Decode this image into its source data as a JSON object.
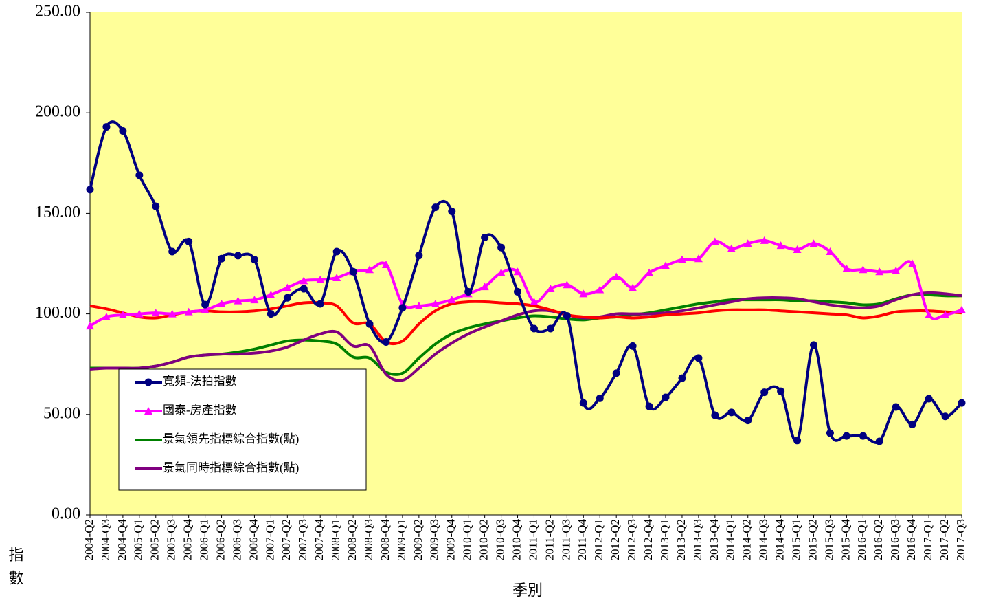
{
  "chart_data": {
    "type": "line",
    "x_label": "季別",
    "y_label": "指數",
    "categories": [
      "2004-Q2",
      "2004-Q3",
      "2004-Q4",
      "2005-Q1",
      "2005-Q2",
      "2005-Q3",
      "2005-Q4",
      "2006-Q1",
      "2006-Q2",
      "2006-Q3",
      "2006-Q4",
      "2007-Q1",
      "2007-Q2",
      "2007-Q3",
      "2007-Q4",
      "2008-Q1",
      "2008-Q2",
      "2008-Q3",
      "2008-Q4",
      "2009-Q1",
      "2009-Q2",
      "2009-Q3",
      "2009-Q4",
      "2010-Q1",
      "2010-Q2",
      "2010-Q3",
      "2010-Q4",
      "2011-Q1",
      "2011-Q2",
      "2011-Q3",
      "2011-Q4",
      "2012-Q1",
      "2012-Q2",
      "2012-Q3",
      "2012-Q4",
      "2013-Q1",
      "2013-Q2",
      "2013-Q3",
      "2013-Q4",
      "2014-Q1",
      "2014-Q2",
      "2014-Q3",
      "2014-Q4",
      "2015-Q1",
      "2015-Q2",
      "2015-Q3",
      "2015-Q4",
      "2016-Q1",
      "2016-Q2",
      "2016-Q3",
      "2016-Q4",
      "2017-Q1",
      "2017-Q2",
      "2017-Q3"
    ],
    "series": [
      {
        "name": "寬頻-法拍指數",
        "color": "#000080",
        "marker": "circle",
        "values": [
          161.8,
          193,
          191,
          169,
          153.5,
          131,
          136,
          104.6,
          127.5,
          129,
          127,
          100,
          108,
          112.5,
          105,
          131,
          121,
          95,
          86,
          103,
          129,
          153,
          151,
          111,
          138,
          133,
          111,
          92.7,
          92.7,
          99,
          55.7,
          58,
          70.5,
          84,
          54,
          58.5,
          68,
          78,
          49.6,
          51,
          47,
          61,
          61.5,
          37,
          84.5,
          40.7,
          39.3,
          39.3,
          36.6,
          53.7,
          45,
          57.8,
          49,
          55.7
        ]
      },
      {
        "name": "國泰-房產指數",
        "color": "#ff00ff",
        "marker": "triangle",
        "values": [
          94,
          98.5,
          99.5,
          100,
          100.5,
          100,
          101,
          102,
          105,
          106.5,
          107,
          109.5,
          113,
          116.5,
          117,
          118,
          121,
          122,
          124.5,
          105,
          104,
          105,
          107,
          110,
          113.5,
          120.5,
          121,
          106,
          112.5,
          114.5,
          110,
          112,
          118.5,
          113,
          120.5,
          124,
          127,
          127.5,
          136,
          132.5,
          135,
          136.5,
          134,
          132,
          135,
          131,
          122.5,
          122,
          121,
          121.5,
          125,
          99.5,
          99.5,
          102
        ]
      },
      {
        "name": "景氣領先指標綜合指數(點)",
        "color": "#008000",
        "marker": "none",
        "values": [
          73,
          73,
          73,
          73,
          74,
          76,
          78.5,
          79.5,
          80,
          81,
          82.5,
          84.5,
          86.5,
          87,
          86.5,
          85,
          78.5,
          78,
          71,
          70.5,
          78,
          85,
          90,
          93,
          95,
          96.5,
          98,
          99,
          98.5,
          97.5,
          97,
          98,
          98.5,
          99.5,
          100.5,
          102,
          103.5,
          105,
          106,
          107,
          107,
          107,
          107,
          106.5,
          106.5,
          106,
          105.5,
          104.5,
          105,
          107.5,
          109.5,
          109.5,
          109,
          109
        ]
      },
      {
        "name": "景氣同時指標綜合指數(點)",
        "color": "#800080",
        "marker": "none",
        "values": [
          72.5,
          73,
          73,
          73,
          74,
          76,
          78.5,
          79.5,
          80,
          80,
          80.5,
          81.5,
          83.5,
          87,
          90,
          91,
          84,
          84,
          70,
          67,
          73,
          80,
          85.5,
          90,
          93.5,
          96.5,
          99.5,
          101.5,
          101.5,
          99.5,
          98,
          98.5,
          100,
          100,
          100,
          100.5,
          101.5,
          103,
          104.5,
          106,
          107.5,
          108,
          108,
          107.5,
          106,
          104.5,
          103.5,
          103,
          104,
          107,
          109.5,
          110.5,
          110,
          109
        ]
      },
      {
        "name": "red-line",
        "color": "#ff0000",
        "marker": "none",
        "legend": false,
        "values": [
          104,
          102.5,
          100.5,
          98.5,
          98,
          99.5,
          101,
          101.5,
          101,
          101,
          101.5,
          102.5,
          104,
          105.5,
          105.5,
          104,
          95.5,
          95,
          86,
          86.5,
          95,
          101.5,
          105,
          106,
          106,
          105.5,
          105,
          104,
          102,
          99.5,
          98.5,
          98,
          98.5,
          98,
          98.5,
          99.5,
          100,
          100.5,
          101.5,
          102,
          102,
          102,
          101.5,
          101,
          100.5,
          100,
          99.5,
          98,
          99,
          101,
          101.5,
          101.5,
          101,
          100.5
        ]
      }
    ],
    "ylim": [
      0,
      250
    ],
    "yticks": [
      {
        "value": 0,
        "label": "0.00"
      },
      {
        "value": 50,
        "label": "50.00"
      },
      {
        "value": 100,
        "label": "100.00"
      },
      {
        "value": 150,
        "label": "150.00"
      },
      {
        "value": 200,
        "label": "200.00"
      },
      {
        "value": 250,
        "label": "250.00"
      }
    ],
    "background": "#ffff99"
  }
}
